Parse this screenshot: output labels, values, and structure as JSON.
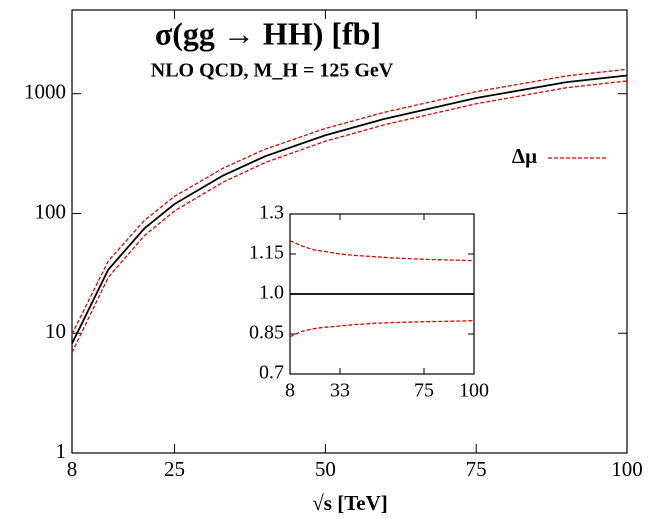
{
  "chart_data": [
    {
      "type": "line",
      "title": "σ(gg → HH) [fb]",
      "subtitle": "NLO QCD, M_H = 125 GeV",
      "xlabel": "√s [TeV]",
      "x": [
        8,
        14,
        20,
        25,
        33,
        40,
        50,
        60,
        75,
        90,
        100
      ],
      "series": [
        {
          "color": "#000000",
          "dash": false,
          "values": [
            8.2,
            33.9,
            75,
            120,
            207,
            300,
            450,
            620,
            920,
            1250,
            1420
          ]
        },
        {
          "name": "Δμ",
          "color": "#e00000",
          "dash": true,
          "values": [
            9.8,
            40,
            87.4,
            139,
            238,
            344,
            513,
            704,
            1040,
            1409,
            1598
          ]
        },
        {
          "color": "#e00000",
          "dash": true,
          "values": [
            6.9,
            29.2,
            65.3,
            105,
            182,
            266,
            401,
            554,
            824,
            1123,
            1278
          ]
        }
      ],
      "xlim": [
        8,
        100
      ],
      "xticks": [
        8,
        25,
        50,
        75,
        100
      ],
      "ylim": [
        1,
        5000
      ],
      "yticks": [
        1,
        10,
        100,
        1000
      ],
      "log_y": true,
      "legend": "upper-right"
    },
    {
      "type": "line",
      "x": [
        8,
        14,
        20,
        25,
        33,
        40,
        50,
        60,
        75,
        90,
        100
      ],
      "series": [
        {
          "color": "#000000",
          "dash": false,
          "values": [
            1,
            1,
            1,
            1,
            1,
            1,
            1,
            1,
            1,
            1,
            1
          ]
        },
        {
          "color": "#e00000",
          "dash": true,
          "values": [
            1.2,
            1.18,
            1.165,
            1.16,
            1.15,
            1.145,
            1.14,
            1.135,
            1.13,
            1.127,
            1.125
          ]
        },
        {
          "color": "#e00000",
          "dash": true,
          "values": [
            0.84,
            0.86,
            0.87,
            0.875,
            0.88,
            0.885,
            0.89,
            0.893,
            0.896,
            0.898,
            0.9
          ]
        }
      ],
      "xlim": [
        8,
        100
      ],
      "xticks": [
        8,
        33,
        75,
        100
      ],
      "ylim": [
        0.7,
        1.3
      ],
      "yticks": [
        0.7,
        0.85,
        {
          "value": 1,
          "label": "1.0"
        },
        1.15,
        1.3
      ],
      "log_y": false
    }
  ]
}
